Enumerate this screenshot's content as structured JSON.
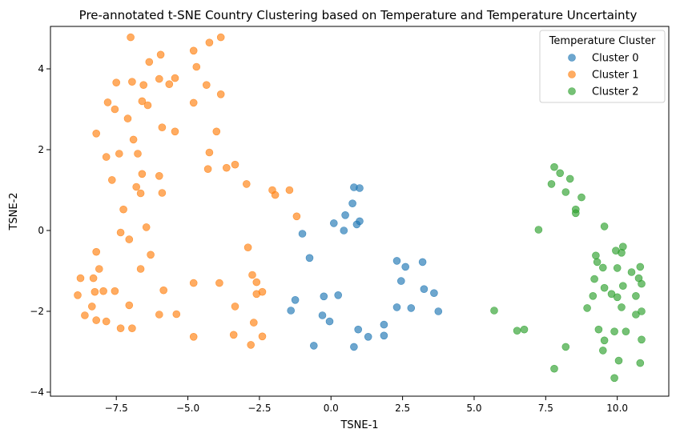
{
  "chart_data": {
    "type": "scatter",
    "title": "Pre-annotated t-SNE Country Clustering based on Temperature and Temperature Uncertainty",
    "xlabel": "TSNE-1",
    "ylabel": "TSNE-2",
    "xlim": [
      -9.8,
      11.8
    ],
    "ylim": [
      -4.1,
      5.05
    ],
    "xticks": [
      -7.5,
      -5.0,
      -2.5,
      0.0,
      2.5,
      5.0,
      7.5,
      10.0
    ],
    "xtick_labels": [
      "−7.5",
      "−5.0",
      "−2.5",
      "0.0",
      "2.5",
      "5.0",
      "7.5",
      "10.0"
    ],
    "yticks": [
      -4,
      -2,
      0,
      2,
      4
    ],
    "ytick_labels": [
      "−4",
      "−2",
      "0",
      "2",
      "4"
    ],
    "grid": false,
    "legend": {
      "title": "Temperature Cluster",
      "placement": "top-right"
    },
    "series": [
      {
        "name": "Cluster 0",
        "color": "#1f77b4",
        "points": [
          [
            0.8,
            1.07
          ],
          [
            1.0,
            1.05
          ],
          [
            0.75,
            0.67
          ],
          [
            0.5,
            0.38
          ],
          [
            0.1,
            0.18
          ],
          [
            1.0,
            0.23
          ],
          [
            0.9,
            0.15
          ],
          [
            0.45,
            0.0
          ],
          [
            -1.0,
            -0.08
          ],
          [
            -0.75,
            -0.68
          ],
          [
            2.3,
            -0.75
          ],
          [
            3.2,
            -0.78
          ],
          [
            2.6,
            -0.9
          ],
          [
            2.45,
            -1.25
          ],
          [
            3.25,
            -1.45
          ],
          [
            3.6,
            -1.55
          ],
          [
            -1.25,
            -1.72
          ],
          [
            -0.25,
            -1.63
          ],
          [
            0.25,
            -1.6
          ],
          [
            -1.4,
            -1.98
          ],
          [
            2.3,
            -1.9
          ],
          [
            2.8,
            -1.92
          ],
          [
            3.75,
            -2.0
          ],
          [
            -0.3,
            -2.1
          ],
          [
            -0.05,
            -2.25
          ],
          [
            1.85,
            -2.33
          ],
          [
            0.95,
            -2.45
          ],
          [
            1.85,
            -2.6
          ],
          [
            1.3,
            -2.63
          ],
          [
            -0.6,
            -2.85
          ],
          [
            0.8,
            -2.88
          ]
        ]
      },
      {
        "name": "Cluster 1",
        "color": "#ff7f0e",
        "points": [
          [
            -7.0,
            4.78
          ],
          [
            -3.85,
            4.78
          ],
          [
            -4.25,
            4.65
          ],
          [
            -4.8,
            4.45
          ],
          [
            -5.95,
            4.35
          ],
          [
            -6.35,
            4.17
          ],
          [
            -4.7,
            4.05
          ],
          [
            -5.45,
            3.77
          ],
          [
            -6.0,
            3.75
          ],
          [
            -7.5,
            3.66
          ],
          [
            -6.95,
            3.68
          ],
          [
            -6.55,
            3.6
          ],
          [
            -5.65,
            3.62
          ],
          [
            -4.35,
            3.6
          ],
          [
            -3.85,
            3.37
          ],
          [
            -7.8,
            3.17
          ],
          [
            -6.6,
            3.2
          ],
          [
            -4.8,
            3.16
          ],
          [
            -6.4,
            3.1
          ],
          [
            -7.55,
            3.0
          ],
          [
            -7.1,
            2.77
          ],
          [
            -5.9,
            2.55
          ],
          [
            -5.45,
            2.45
          ],
          [
            -4.0,
            2.45
          ],
          [
            -8.2,
            2.4
          ],
          [
            -6.9,
            2.25
          ],
          [
            -4.25,
            1.93
          ],
          [
            -7.4,
            1.9
          ],
          [
            -6.75,
            1.9
          ],
          [
            -7.85,
            1.82
          ],
          [
            -3.65,
            1.55
          ],
          [
            -4.3,
            1.52
          ],
          [
            -3.35,
            1.63
          ],
          [
            -6.6,
            1.4
          ],
          [
            -6.0,
            1.35
          ],
          [
            -7.65,
            1.25
          ],
          [
            -2.95,
            1.15
          ],
          [
            -6.8,
            1.08
          ],
          [
            -2.05,
            1.0
          ],
          [
            -1.45,
            1.0
          ],
          [
            -5.9,
            0.93
          ],
          [
            -6.65,
            0.92
          ],
          [
            -1.95,
            0.88
          ],
          [
            -7.25,
            0.52
          ],
          [
            -1.2,
            0.35
          ],
          [
            -6.45,
            0.08
          ],
          [
            -7.35,
            -0.05
          ],
          [
            -7.05,
            -0.22
          ],
          [
            -2.9,
            -0.42
          ],
          [
            -8.2,
            -0.53
          ],
          [
            -6.3,
            -0.6
          ],
          [
            -8.1,
            -0.95
          ],
          [
            -6.65,
            -0.95
          ],
          [
            -8.75,
            -1.18
          ],
          [
            -8.3,
            -1.18
          ],
          [
            -2.75,
            -1.1
          ],
          [
            -4.8,
            -1.3
          ],
          [
            -3.9,
            -1.3
          ],
          [
            -2.6,
            -1.28
          ],
          [
            -8.25,
            -1.52
          ],
          [
            -7.95,
            -1.5
          ],
          [
            -7.55,
            -1.5
          ],
          [
            -5.85,
            -1.48
          ],
          [
            -2.4,
            -1.52
          ],
          [
            -2.6,
            -1.57
          ],
          [
            -8.85,
            -1.6
          ],
          [
            -8.35,
            -1.88
          ],
          [
            -7.05,
            -1.85
          ],
          [
            -3.35,
            -1.88
          ],
          [
            -8.6,
            -2.1
          ],
          [
            -6.0,
            -2.08
          ],
          [
            -5.4,
            -2.07
          ],
          [
            -8.2,
            -2.22
          ],
          [
            -7.85,
            -2.25
          ],
          [
            -2.7,
            -2.28
          ],
          [
            -7.35,
            -2.42
          ],
          [
            -6.95,
            -2.42
          ],
          [
            -3.4,
            -2.58
          ],
          [
            -2.4,
            -2.62
          ],
          [
            -4.8,
            -2.63
          ],
          [
            -2.8,
            -2.83
          ]
        ]
      },
      {
        "name": "Cluster 2",
        "color": "#2ca02c",
        "points": [
          [
            7.8,
            1.57
          ],
          [
            8.0,
            1.42
          ],
          [
            8.35,
            1.28
          ],
          [
            7.7,
            1.15
          ],
          [
            8.2,
            0.95
          ],
          [
            8.75,
            0.82
          ],
          [
            8.55,
            0.52
          ],
          [
            8.55,
            0.43
          ],
          [
            9.55,
            0.1
          ],
          [
            7.25,
            0.02
          ],
          [
            10.2,
            -0.4
          ],
          [
            9.95,
            -0.5
          ],
          [
            10.15,
            -0.55
          ],
          [
            9.25,
            -0.62
          ],
          [
            9.3,
            -0.78
          ],
          [
            9.5,
            -0.92
          ],
          [
            10.0,
            -0.93
          ],
          [
            10.8,
            -0.9
          ],
          [
            10.5,
            -1.03
          ],
          [
            9.2,
            -1.2
          ],
          [
            10.75,
            -1.18
          ],
          [
            10.2,
            -1.37
          ],
          [
            10.85,
            -1.32
          ],
          [
            9.55,
            -1.42
          ],
          [
            9.8,
            -1.57
          ],
          [
            10.65,
            -1.62
          ],
          [
            9.15,
            -1.62
          ],
          [
            10.0,
            -1.65
          ],
          [
            10.15,
            -1.9
          ],
          [
            8.95,
            -1.92
          ],
          [
            5.7,
            -1.98
          ],
          [
            10.85,
            -2.0
          ],
          [
            10.65,
            -2.08
          ],
          [
            9.35,
            -2.45
          ],
          [
            9.9,
            -2.5
          ],
          [
            10.3,
            -2.5
          ],
          [
            6.5,
            -2.48
          ],
          [
            6.75,
            -2.45
          ],
          [
            9.55,
            -2.72
          ],
          [
            10.85,
            -2.7
          ],
          [
            8.2,
            -2.88
          ],
          [
            9.5,
            -2.97
          ],
          [
            10.05,
            -3.22
          ],
          [
            10.8,
            -3.28
          ],
          [
            7.8,
            -3.42
          ],
          [
            9.9,
            -3.65
          ]
        ]
      }
    ]
  }
}
